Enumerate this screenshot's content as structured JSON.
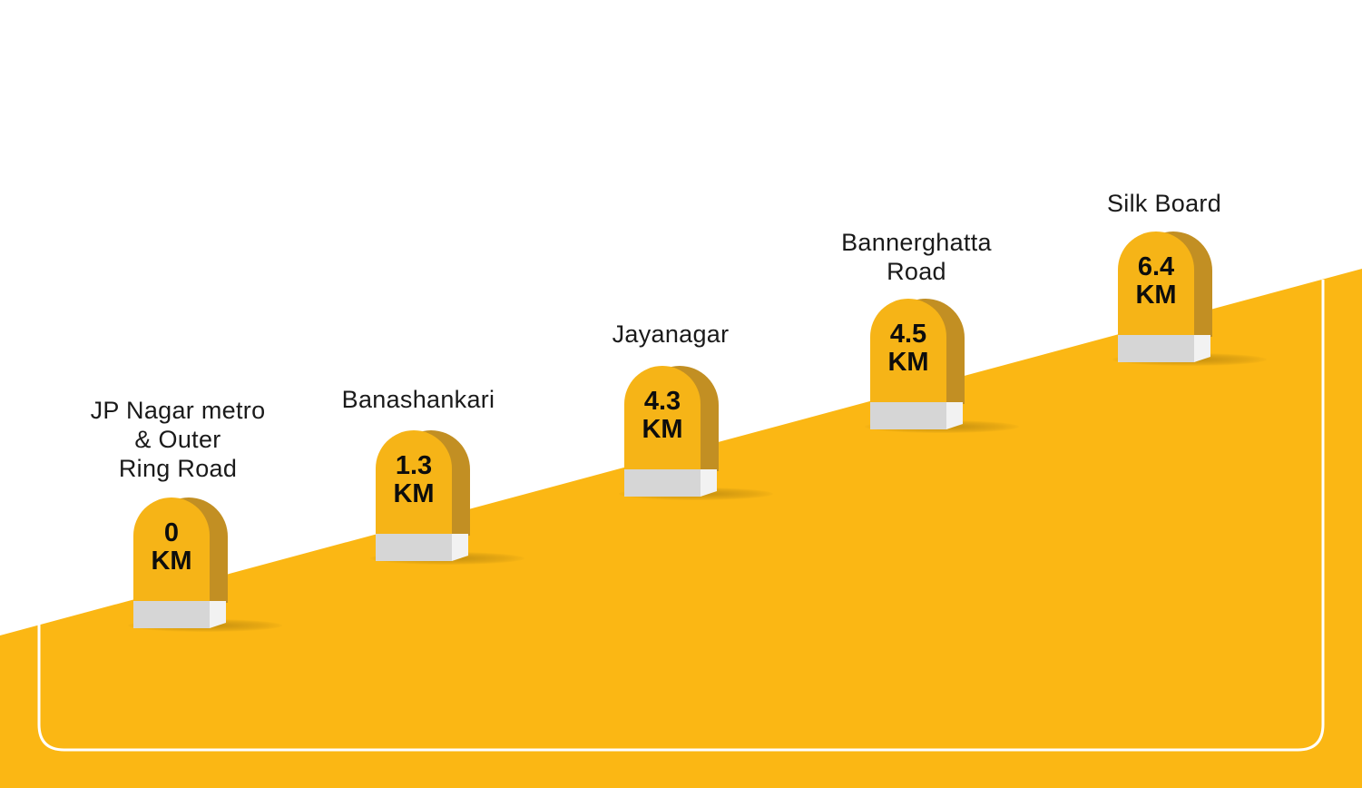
{
  "colors": {
    "road": "#fbb714",
    "stone_face": "#f6b417",
    "stone_side": "#c28f23",
    "stone_base": "#d6d6d6",
    "outline": "#ffffff"
  },
  "milestones": [
    {
      "place": "JP Nagar metro\n& Outer\nRing Road",
      "distance": "0",
      "unit": "KM"
    },
    {
      "place": "Banashankari",
      "distance": "1.3",
      "unit": "KM"
    },
    {
      "place": "Jayanagar",
      "distance": "4.3",
      "unit": "KM"
    },
    {
      "place": "Bannerghatta\nRoad",
      "distance": "4.5",
      "unit": "KM"
    },
    {
      "place": "Silk Board",
      "distance": "6.4",
      "unit": "KM"
    }
  ]
}
